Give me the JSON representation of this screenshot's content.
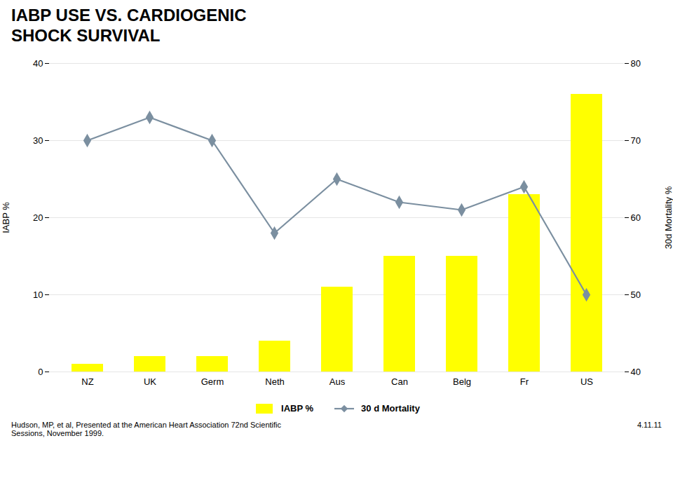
{
  "chart_data": {
    "type": "bar",
    "title": "IABP USE VS. CARDIOGENIC\nSHOCK SURVIVAL",
    "categories": [
      "NZ",
      "UK",
      "Germ",
      "Neth",
      "Aus",
      "Can",
      "Belg",
      "Fr",
      "US"
    ],
    "series": [
      {
        "name": "IABP %",
        "type": "bar",
        "color": "#FFFF00",
        "values": [
          1,
          2,
          2,
          4,
          11,
          15,
          15,
          23,
          36
        ]
      },
      {
        "name": "30 d Mortality",
        "type": "line",
        "axis": "y2",
        "color": "#7B8FA0",
        "marker": "diamond",
        "values": [
          70,
          73,
          70,
          58,
          65,
          62,
          61,
          64,
          50
        ]
      }
    ],
    "ylabel": "IABP %",
    "y2label": "30d Mortality %",
    "ylim": [
      0,
      40
    ],
    "yticks": [
      0,
      10,
      20,
      30,
      40
    ],
    "y2lim": [
      40,
      80
    ],
    "y2ticks": [
      40,
      50,
      60,
      70,
      80
    ],
    "grid": true,
    "legend": "bottom",
    "annotations": [
      "Hudson, MP, et al,  Presented at the American Heart Association  72nd Scientific\nSessions, November 1999.",
      "4.11.11"
    ]
  }
}
